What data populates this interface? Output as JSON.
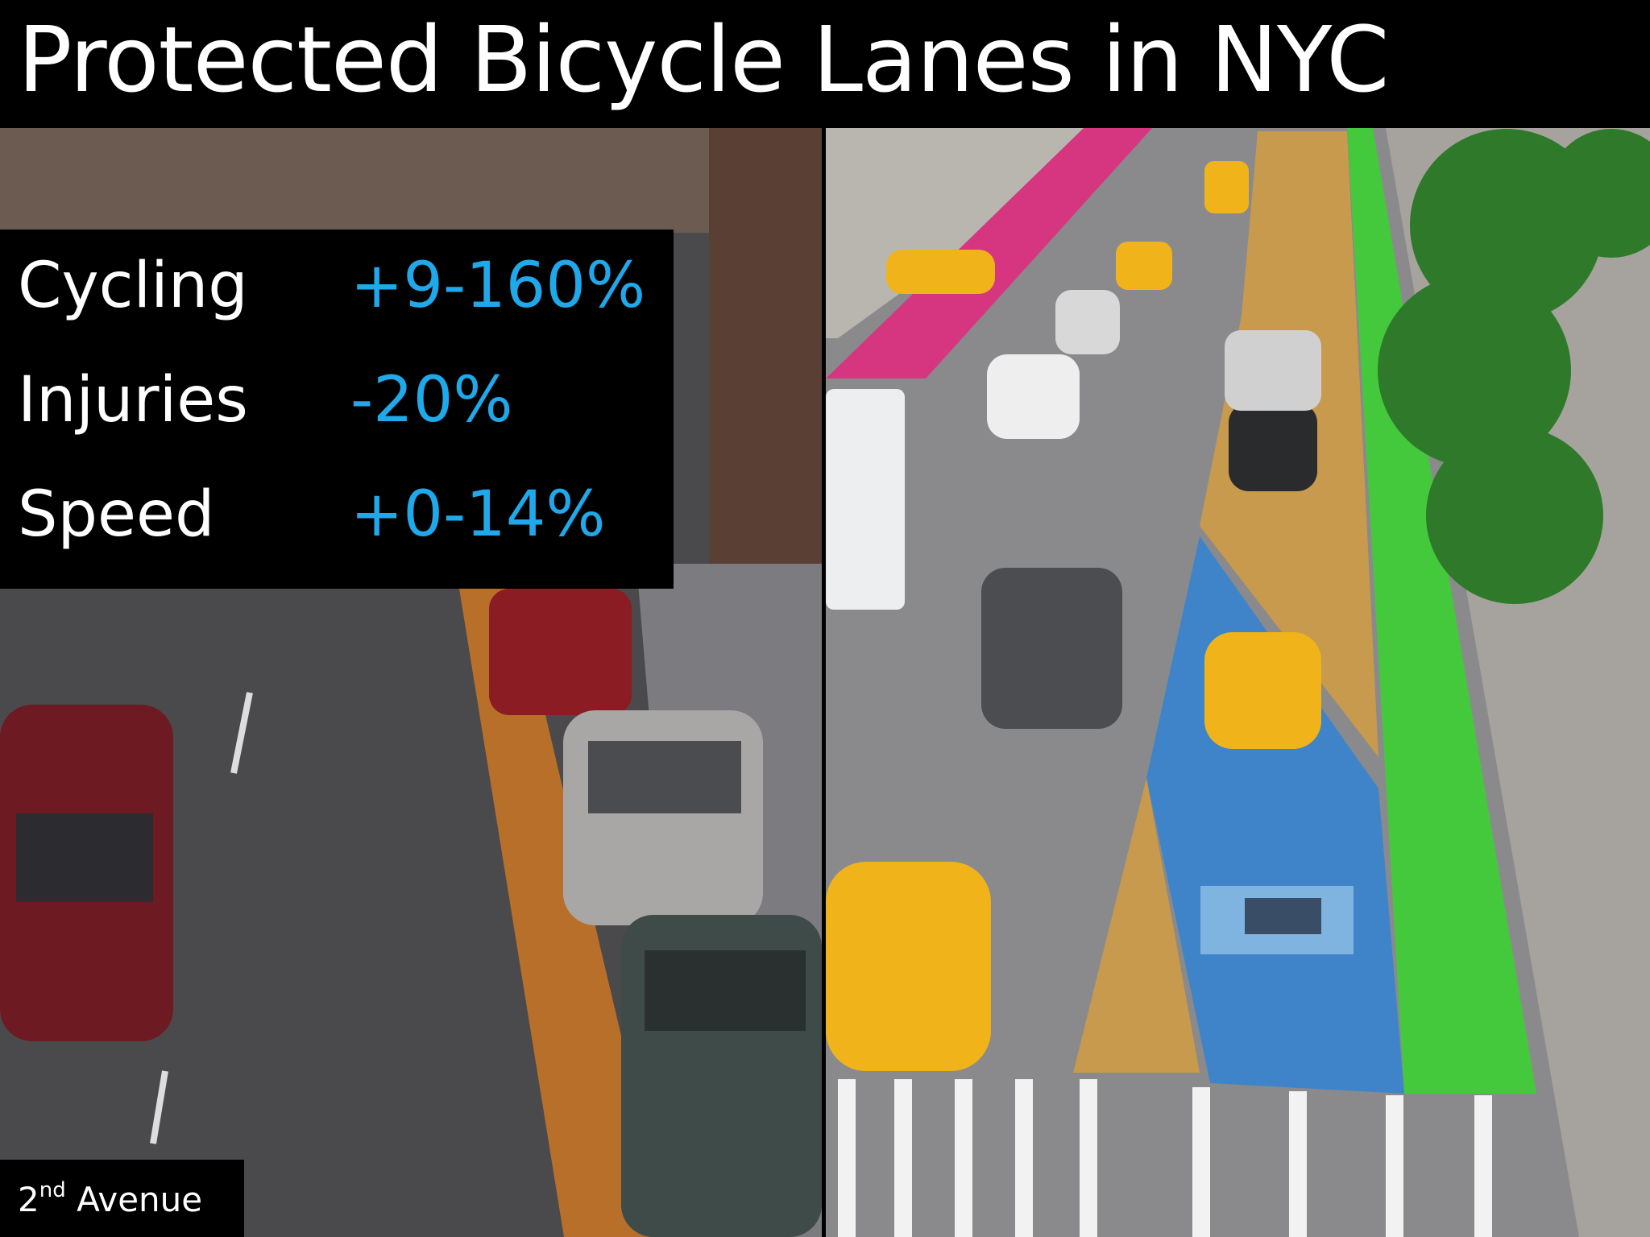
{
  "header": {
    "title": "Protected Bicycle Lanes in NYC"
  },
  "stats": [
    {
      "label": "Cycling",
      "value": "+9-160%"
    },
    {
      "label": "Injuries",
      "value": "-20%"
    },
    {
      "label": "Speed",
      "value": "+0-14%"
    }
  ],
  "caption": {
    "number": "2",
    "suffix": "nd",
    "text": "Avenue"
  }
}
